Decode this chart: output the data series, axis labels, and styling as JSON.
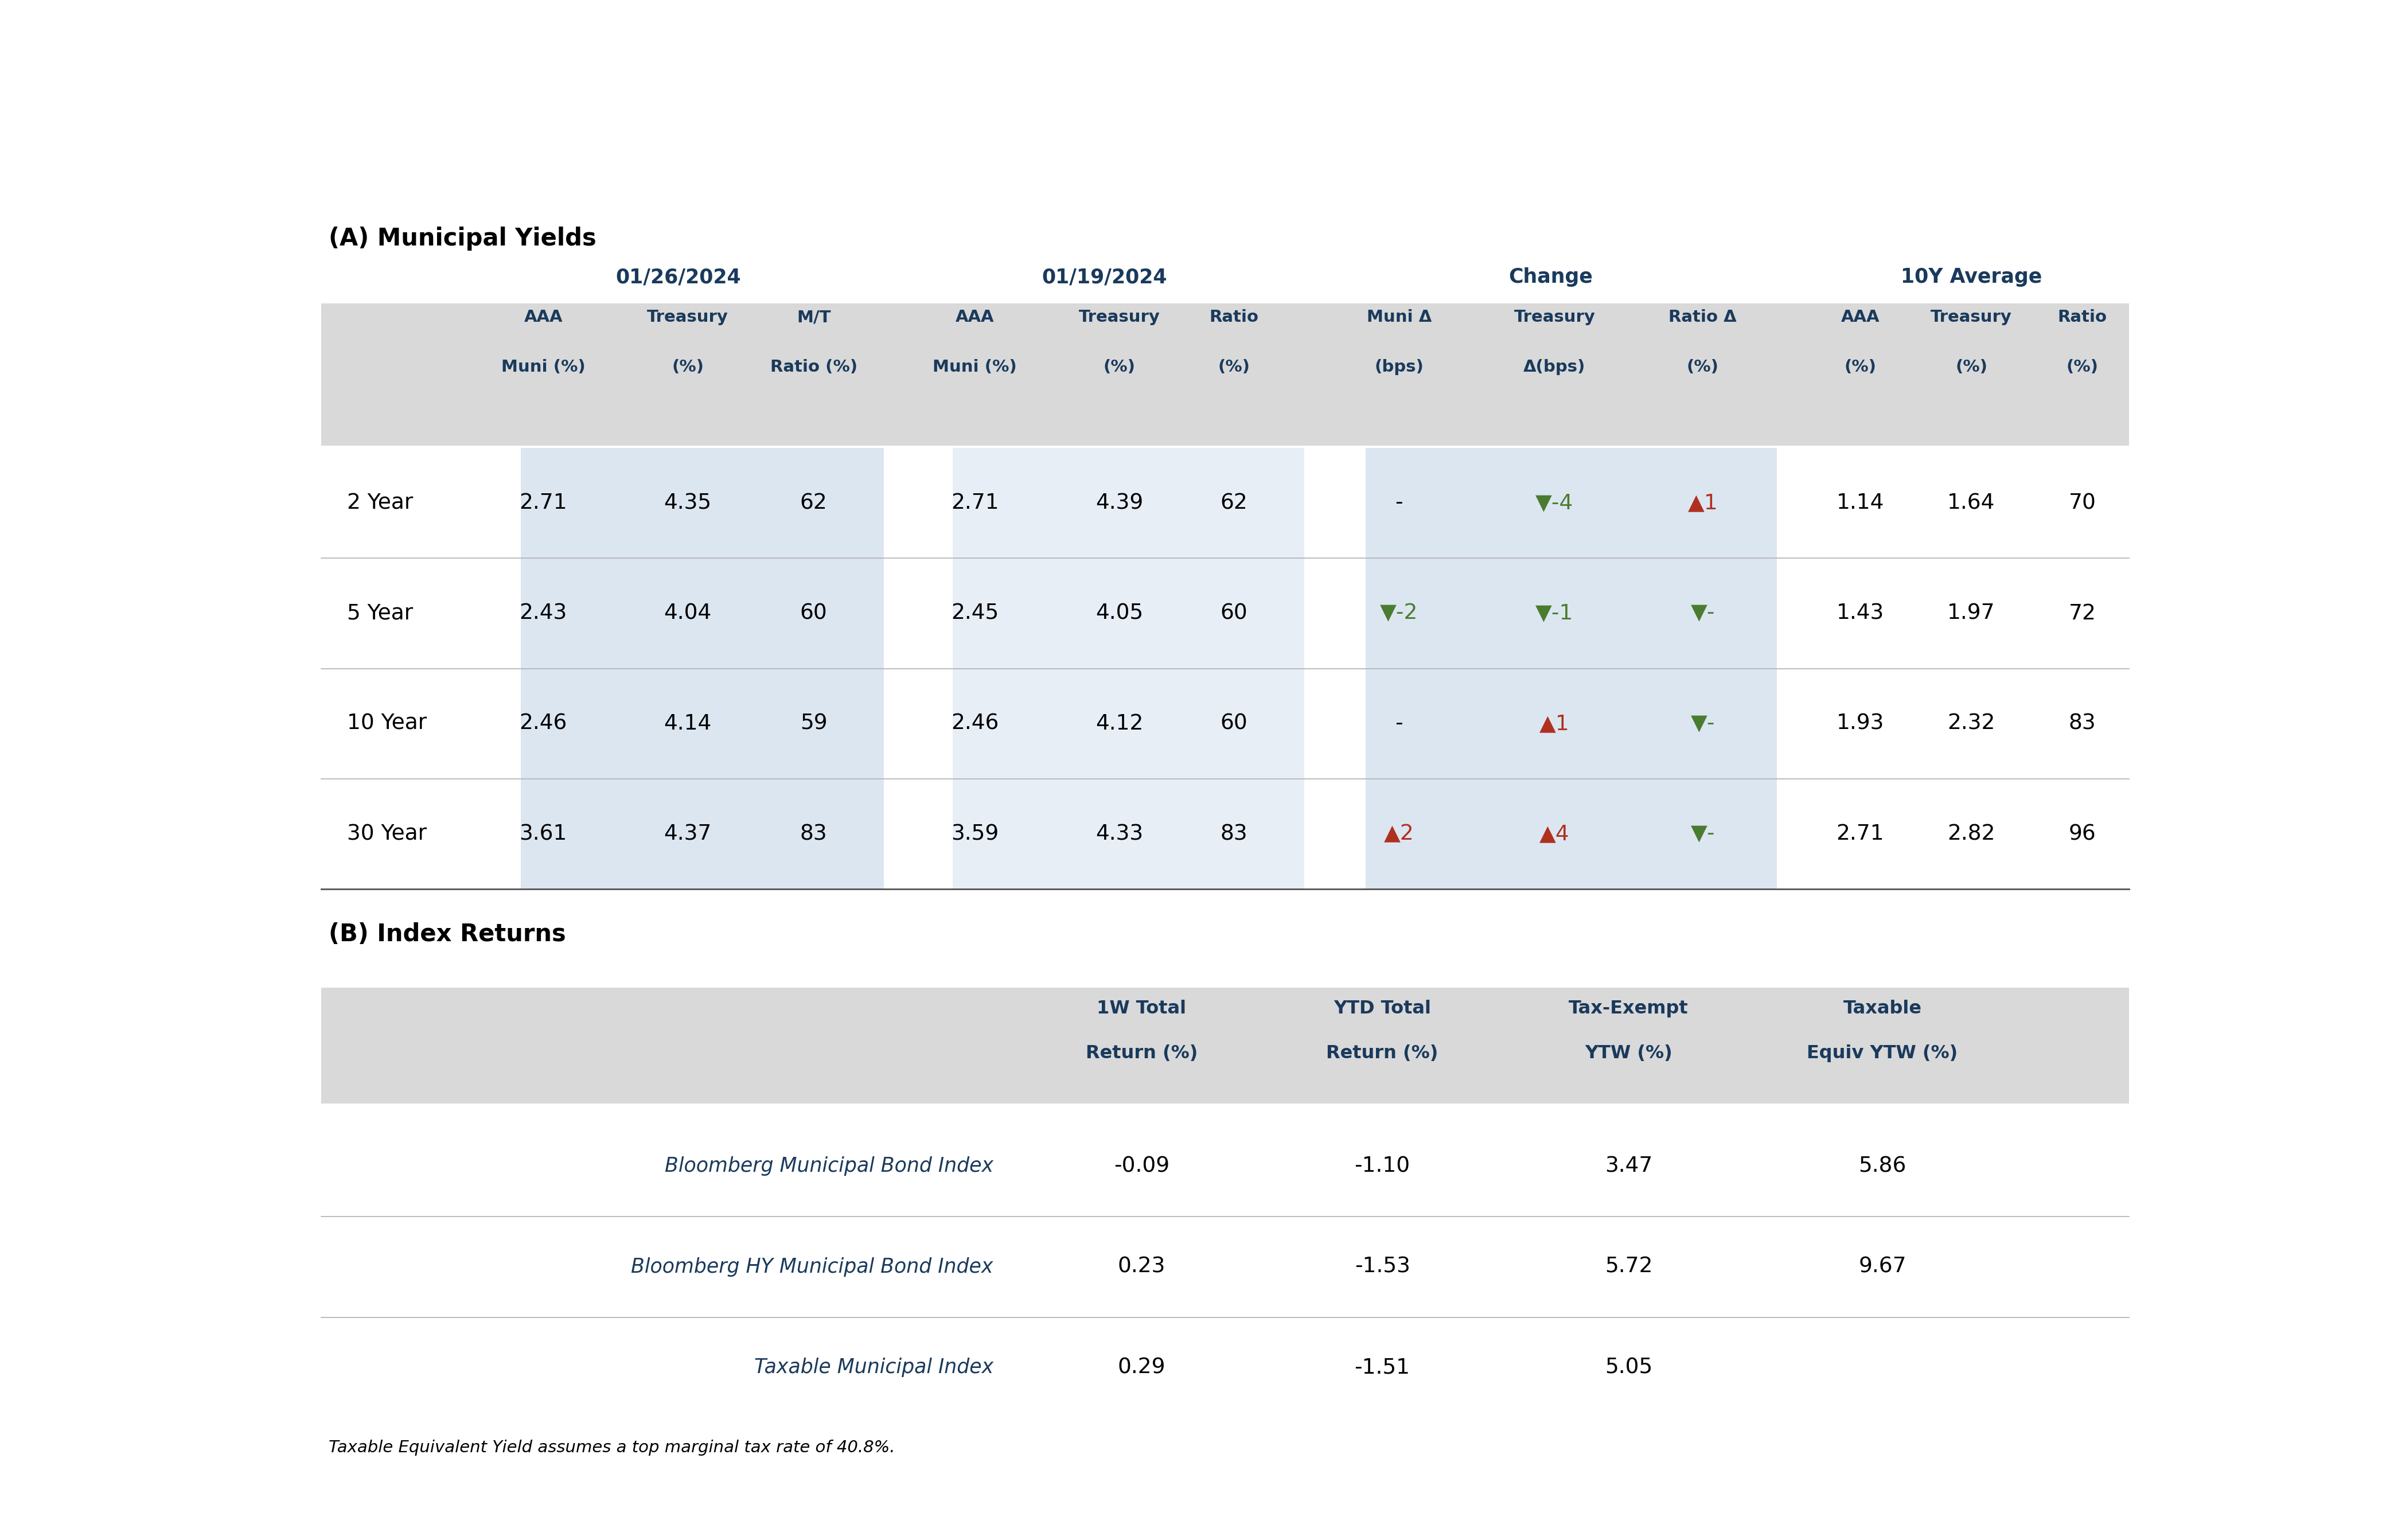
{
  "title_a": "(A) Municipal Yields",
  "title_b": "(B) Index Returns",
  "footnote": "Taxable Equivalent Yield assumes a top marginal tax rate of 40.8%.",
  "date1": "01/26/2024",
  "date2": "01/19/2024",
  "group3": "Change",
  "group4": "10Y Average",
  "col_headers_line1": [
    "AAA",
    "Treasury",
    "M/T",
    "AAA",
    "Treasury",
    "Ratio",
    "Muni Δ",
    "Treasury",
    "Ratio Δ",
    "AAA",
    "Treasury",
    "Ratio"
  ],
  "col_headers_line2": [
    "Muni (%)",
    "(%)",
    "Ratio (%)",
    "Muni (%)",
    "(%)",
    "(%)",
    "(bps)",
    "Δ(bps)",
    "(%)",
    "(%)",
    "(%)",
    "(%)"
  ],
  "row_labels": [
    "2 Year",
    "5 Year",
    "10 Year",
    "30 Year"
  ],
  "table_data": [
    [
      "2.71",
      "4.35",
      "62",
      "2.71",
      "4.39",
      "62",
      "-",
      "▼-4",
      "▲1",
      "1.14",
      "1.64",
      "70"
    ],
    [
      "2.43",
      "4.04",
      "60",
      "2.45",
      "4.05",
      "60",
      "▼-2",
      "▼-1",
      "▼-",
      "1.43",
      "1.97",
      "72"
    ],
    [
      "2.46",
      "4.14",
      "59",
      "2.46",
      "4.12",
      "60",
      "-",
      "▲1",
      "▼-",
      "1.93",
      "2.32",
      "83"
    ],
    [
      "3.61",
      "4.37",
      "83",
      "3.59",
      "4.33",
      "83",
      "▲2",
      "▲4",
      "▼-",
      "2.71",
      "2.82",
      "96"
    ]
  ],
  "change_colors": [
    [
      "black",
      "green",
      "red"
    ],
    [
      "green",
      "green",
      "green"
    ],
    [
      "black",
      "red",
      "green"
    ],
    [
      "red",
      "red",
      "green"
    ]
  ],
  "index_col_headers_l1": [
    "1W Total",
    "YTD Total",
    "Tax-Exempt",
    "Taxable"
  ],
  "index_col_headers_l2": [
    "Return (%)",
    "Return (%)",
    "YTW (%)",
    "Equiv YTW (%)"
  ],
  "index_row_labels": [
    "Bloomberg Municipal Bond Index",
    "Bloomberg HY Municipal Bond Index",
    "Taxable Municipal Index"
  ],
  "index_data": [
    [
      "-0.09",
      "-1.10",
      "3.47",
      "5.86"
    ],
    [
      "0.23",
      "-1.53",
      "5.72",
      "9.67"
    ],
    [
      "0.29",
      "-1.51",
      "5.05",
      ""
    ]
  ],
  "dark_navy": "#1a3a5c",
  "light_blue_bg": "#dce6f1",
  "lighter_blue_bg": "#e8eef6",
  "light_gray_bg": "#d9d9d9",
  "red_color": "#b03020",
  "green_color": "#4a7c2f"
}
